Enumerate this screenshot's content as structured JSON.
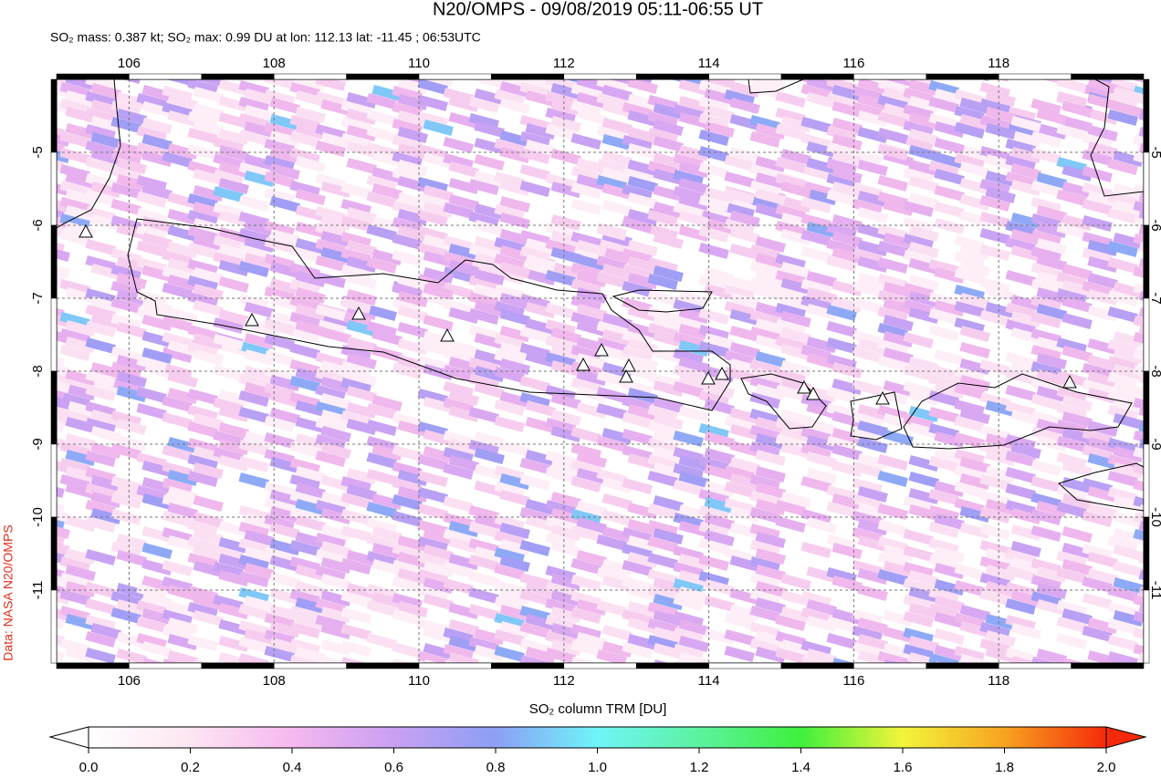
{
  "title": "N20/OMPS - 09/08/2019 05:11-06:55 UT",
  "subtitle": "SO₂ mass: 0.387 kt; SO₂ max: 0.99 DU at lon: 112.13 lat: -11.45 ; 06:53UTC",
  "credit": "Data: NASA N20/OMPS",
  "map": {
    "lonlim": [
      105,
      120
    ],
    "latlim": [
      -4,
      -12
    ],
    "lon_ticks": [
      106,
      108,
      110,
      112,
      114,
      116,
      118
    ],
    "lat_ticks": [
      -5,
      -6,
      -7,
      -8,
      -9,
      -10,
      -11
    ]
  },
  "colorbar": {
    "label": "SO₂ column TRM [DU]",
    "lim": [
      0,
      2
    ],
    "ticks": [
      {
        "value": 0,
        "label": "0.0"
      },
      {
        "value": 0.2,
        "label": "0.2"
      },
      {
        "value": 0.4,
        "label": "0.4"
      },
      {
        "value": 0.6,
        "label": "0.6"
      },
      {
        "value": 0.8,
        "label": "0.8"
      },
      {
        "value": 1,
        "label": "1.0"
      },
      {
        "value": 1.2,
        "label": "1.2"
      },
      {
        "value": 1.4,
        "label": "1.4"
      },
      {
        "value": 1.6,
        "label": "1.6"
      },
      {
        "value": 1.8,
        "label": "1.8"
      },
      {
        "value": 2,
        "label": "2.0"
      }
    ]
  }
}
